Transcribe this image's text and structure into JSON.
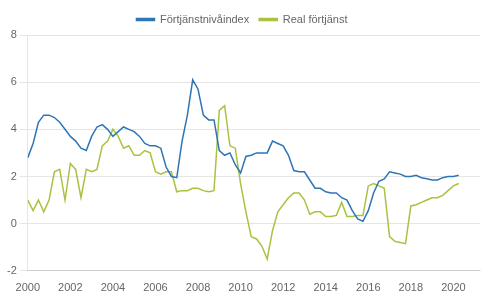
{
  "chart_data": {
    "type": "line",
    "x": [
      2000,
      2000.25,
      2000.5,
      2000.75,
      2001,
      2001.25,
      2001.5,
      2001.75,
      2002,
      2002.25,
      2002.5,
      2002.75,
      2003,
      2003.25,
      2003.5,
      2003.75,
      2004,
      2004.25,
      2004.5,
      2004.75,
      2005,
      2005.25,
      2005.5,
      2005.75,
      2006,
      2006.25,
      2006.5,
      2006.75,
      2007,
      2007.25,
      2007.5,
      2007.75,
      2008,
      2008.25,
      2008.5,
      2008.75,
      2009,
      2009.25,
      2009.5,
      2009.75,
      2010,
      2010.25,
      2010.5,
      2010.75,
      2011,
      2011.25,
      2011.5,
      2011.75,
      2012,
      2012.25,
      2012.5,
      2012.75,
      2013,
      2013.25,
      2013.5,
      2013.75,
      2014,
      2014.25,
      2014.5,
      2014.75,
      2015,
      2015.25,
      2015.5,
      2015.75,
      2016,
      2016.25,
      2016.5,
      2016.75,
      2017,
      2017.25,
      2017.5,
      2017.75,
      2018,
      2018.25,
      2018.5,
      2018.75,
      2019,
      2019.25,
      2019.5,
      2019.75,
      2020,
      2020.25
    ],
    "series": [
      {
        "name": "Förtjänstnivåindex",
        "color": "#2E75B6",
        "values": [
          2.8,
          3.4,
          4.3,
          4.6,
          4.6,
          4.5,
          4.3,
          4.0,
          3.7,
          3.5,
          3.2,
          3.1,
          3.7,
          4.1,
          4.2,
          4.0,
          3.7,
          3.9,
          4.1,
          4.0,
          3.9,
          3.7,
          3.4,
          3.3,
          3.3,
          3.2,
          2.4,
          2.0,
          1.95,
          3.5,
          4.6,
          6.1,
          5.7,
          4.6,
          4.4,
          4.4,
          3.1,
          2.9,
          3.0,
          2.5,
          2.15,
          2.85,
          2.9,
          3.0,
          3.0,
          3.0,
          3.5,
          3.4,
          3.3,
          2.9,
          2.25,
          2.2,
          2.2,
          1.85,
          1.5,
          1.5,
          1.35,
          1.3,
          1.3,
          1.1,
          1.0,
          0.55,
          0.2,
          0.1,
          0.55,
          1.3,
          1.8,
          1.9,
          2.2,
          2.15,
          2.1,
          2.0,
          2.0,
          2.05,
          1.95,
          1.9,
          1.85,
          1.85,
          1.95,
          2.0,
          2.0,
          2.05
        ]
      },
      {
        "name": "Real förtjänst",
        "color": "#A9C23F",
        "values": [
          1.0,
          0.55,
          1.0,
          0.5,
          1.0,
          2.2,
          2.3,
          1.0,
          2.55,
          2.3,
          1.1,
          2.3,
          2.2,
          2.3,
          3.3,
          3.5,
          4.0,
          3.7,
          3.2,
          3.3,
          2.9,
          2.9,
          3.1,
          3.0,
          2.2,
          2.1,
          2.2,
          2.2,
          1.35,
          1.4,
          1.4,
          1.5,
          1.5,
          1.4,
          1.35,
          1.4,
          4.8,
          5.0,
          3.3,
          3.2,
          1.7,
          0.5,
          -0.55,
          -0.65,
          -0.95,
          -1.5,
          -0.3,
          0.5,
          0.8,
          1.1,
          1.3,
          1.3,
          1.0,
          0.4,
          0.5,
          0.5,
          0.3,
          0.3,
          0.35,
          0.9,
          0.3,
          0.3,
          0.35,
          0.35,
          1.6,
          1.7,
          1.6,
          1.5,
          -0.55,
          -0.75,
          -0.8,
          -0.85,
          0.75,
          0.8,
          0.9,
          1.0,
          1.1,
          1.1,
          1.2,
          1.4,
          1.6,
          1.7
        ]
      }
    ],
    "xlim": [
      2000.0,
      2021.25
    ],
    "xticks": [
      2000,
      2002,
      2004,
      2006,
      2008,
      2010,
      2012,
      2014,
      2016,
      2018,
      2020
    ],
    "ylim": [
      -2,
      8
    ],
    "yticks": [
      -2,
      0,
      2,
      4,
      6,
      8
    ],
    "grid": "y",
    "legend": "top"
  }
}
